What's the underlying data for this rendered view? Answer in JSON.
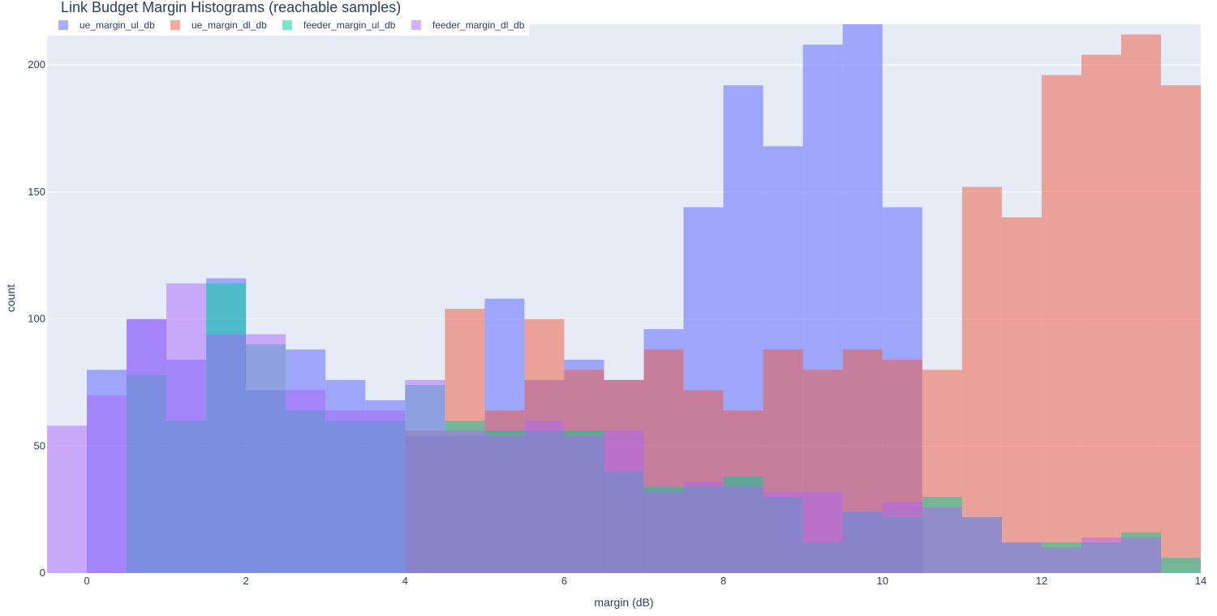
{
  "chart_data": {
    "type": "bar",
    "title": "Link Budget Margin Histograms (reachable samples)",
    "xlabel": "margin (dB)",
    "ylabel": "count",
    "xlim": [
      -0.5,
      14
    ],
    "ylim": [
      0,
      216
    ],
    "x_ticks": [
      0,
      2,
      4,
      6,
      8,
      10,
      12,
      14
    ],
    "y_ticks": [
      0,
      50,
      100,
      150,
      200
    ],
    "barmode": "overlay",
    "grid": true,
    "legend_position": "top-left",
    "series": [
      {
        "name": "ue_margin_ul_db",
        "color": "#636efa",
        "opacity": 0.55,
        "start": 0.0,
        "bin_width": 0.5,
        "values": [
          80,
          100,
          84,
          116,
          72,
          88,
          76,
          68,
          54,
          54,
          108,
          76,
          84,
          76,
          96,
          144,
          192,
          168,
          208,
          216,
          144
        ]
      },
      {
        "name": "ue_margin_dl_db",
        "color": "#ef553b",
        "opacity": 0.5,
        "start": 4.0,
        "bin_width": 0.5,
        "values": [
          56,
          104,
          64,
          100,
          80,
          76,
          88,
          72,
          64,
          88,
          80,
          88,
          84,
          80,
          152,
          140,
          196,
          204,
          212,
          192
        ]
      },
      {
        "name": "feeder_margin_ul_db",
        "color": "#00cc96",
        "opacity": 0.5,
        "start": 0.5,
        "bin_width": 0.5,
        "values": [
          78,
          60,
          114,
          90,
          64,
          60,
          60,
          74,
          60,
          56,
          56,
          56,
          40,
          34,
          34,
          38,
          30,
          12,
          24,
          22,
          30,
          22,
          12,
          12,
          12,
          16,
          6
        ]
      },
      {
        "name": "feeder_margin_dl_db",
        "color": "#ab63fa",
        "opacity": 0.5,
        "start": -0.5,
        "bin_width": 0.5,
        "values": [
          58,
          70,
          100,
          114,
          94,
          94,
          72,
          64,
          64,
          76,
          56,
          54,
          60,
          54,
          56,
          32,
          36,
          34,
          32,
          32,
          24,
          28,
          26,
          22,
          12,
          10,
          14,
          14
        ]
      }
    ]
  }
}
